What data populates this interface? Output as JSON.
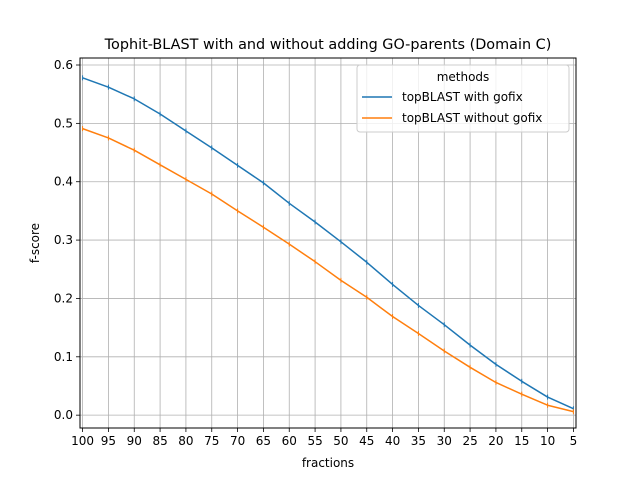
{
  "chart_data": {
    "type": "line",
    "title": "Tophit-BLAST with and without adding GO-parents (Domain C)",
    "xlabel": "fractions",
    "ylabel": "f-score",
    "x": [
      100,
      95,
      90,
      85,
      80,
      75,
      70,
      65,
      60,
      55,
      50,
      45,
      40,
      35,
      30,
      25,
      20,
      15,
      10,
      5
    ],
    "x_reversed": true,
    "xlim": [
      100.5,
      4.5
    ],
    "ylim": [
      -0.022,
      0.612
    ],
    "yticks": [
      0.0,
      0.1,
      0.2,
      0.3,
      0.4,
      0.5,
      0.6
    ],
    "ytick_labels": [
      "0.0",
      "0.1",
      "0.2",
      "0.3",
      "0.4",
      "0.5",
      "0.6"
    ],
    "grid": true,
    "legend": {
      "title": "methods",
      "position": "top-right"
    },
    "series": [
      {
        "name": "topBLAST with gofix",
        "color": "#1f77b4",
        "values": [
          0.578,
          0.562,
          0.542,
          0.516,
          0.487,
          0.458,
          0.428,
          0.398,
          0.363,
          0.331,
          0.297,
          0.262,
          0.224,
          0.188,
          0.155,
          0.12,
          0.087,
          0.058,
          0.031,
          0.011
        ]
      },
      {
        "name": "topBLAST without gofix",
        "color": "#ff7f0e",
        "values": [
          0.491,
          0.475,
          0.454,
          0.429,
          0.404,
          0.379,
          0.35,
          0.322,
          0.293,
          0.263,
          0.231,
          0.202,
          0.169,
          0.14,
          0.11,
          0.082,
          0.056,
          0.036,
          0.017,
          0.006
        ]
      }
    ]
  }
}
